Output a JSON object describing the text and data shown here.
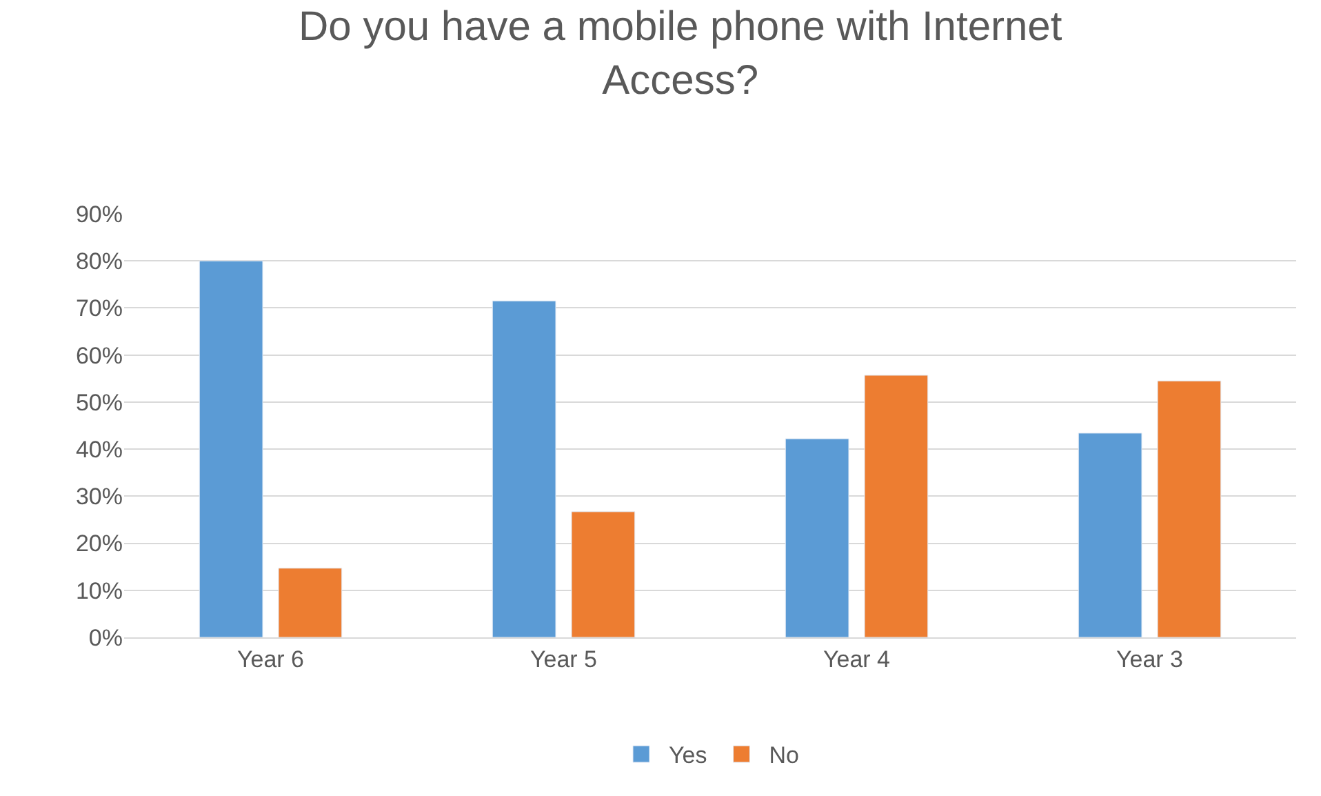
{
  "chart_data": {
    "type": "bar",
    "title": "Do you have a mobile phone with Internet Access?",
    "categories": [
      "Year 6",
      "Year 5",
      "Year 4",
      "Year 3"
    ],
    "series": [
      {
        "name": "Yes",
        "color": "#5b9bd5",
        "values": [
          80,
          71.5,
          42.2,
          43.4
        ]
      },
      {
        "name": "No",
        "color": "#ed7d31",
        "values": [
          14.7,
          26.7,
          55.7,
          54.5
        ]
      }
    ],
    "ylim": [
      0,
      90
    ],
    "yticks": [
      {
        "value": 0,
        "label": "0%"
      },
      {
        "value": 10,
        "label": "10%"
      },
      {
        "value": 20,
        "label": "20%"
      },
      {
        "value": 30,
        "label": "30%"
      },
      {
        "value": 40,
        "label": "40%"
      },
      {
        "value": 50,
        "label": "50%"
      },
      {
        "value": 60,
        "label": "60%"
      },
      {
        "value": 70,
        "label": "70%"
      },
      {
        "value": 80,
        "label": "80%"
      },
      {
        "value": 90,
        "label": "90%"
      }
    ],
    "grid": "y",
    "legend": "bottom"
  }
}
